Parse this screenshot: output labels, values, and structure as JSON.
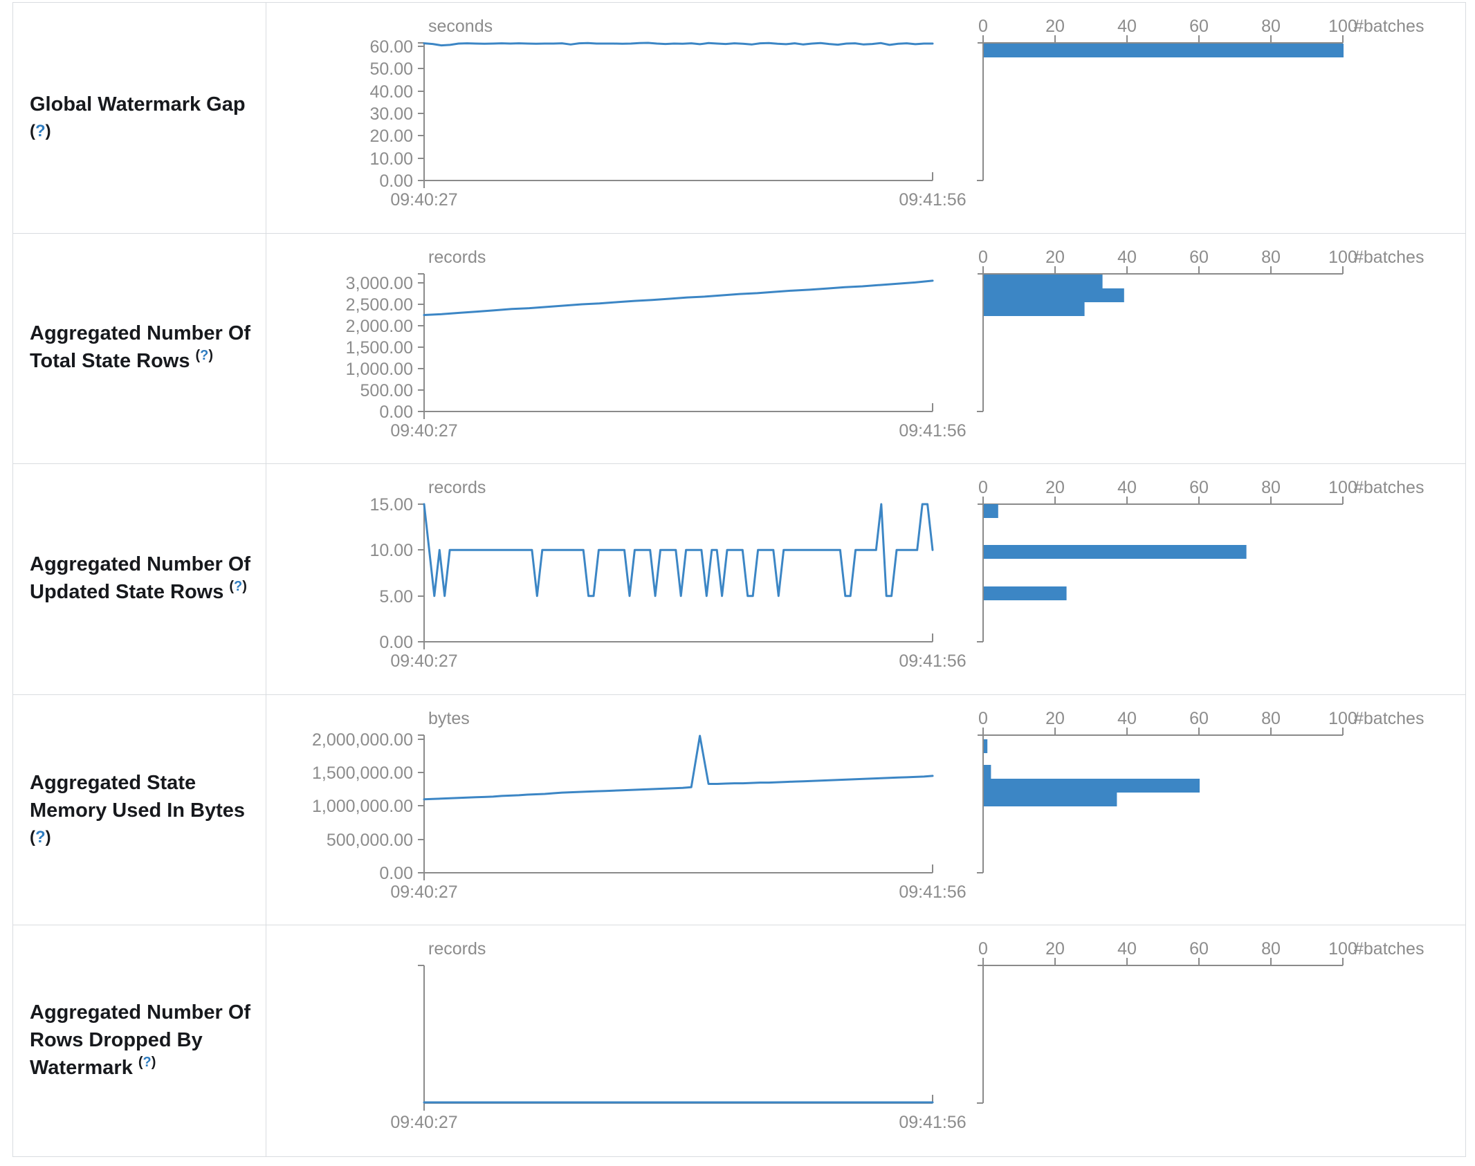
{
  "chart_data": [
    {
      "type": "line",
      "row_label": "Global Watermark Gap (?)",
      "label_lines": [
        "Global Watermark Gap"
      ],
      "help": {
        "open": "(",
        "q": "?",
        "close": ")"
      },
      "help_inline": false,
      "unit": "seconds",
      "x_start_label": "09:40:27",
      "x_end_label": "09:41:56",
      "y_max": 61.5,
      "y_ticks": [
        {
          "value": 0,
          "label": "0.00"
        },
        {
          "value": 10,
          "label": "10.00"
        },
        {
          "value": 20,
          "label": "20.00"
        },
        {
          "value": 30,
          "label": "30.00"
        },
        {
          "value": 40,
          "label": "40.00"
        },
        {
          "value": 50,
          "label": "50.00"
        },
        {
          "value": 60,
          "label": "60.00"
        }
      ],
      "series": [
        61.3,
        61.0,
        60.4,
        60.6,
        61.2,
        61.3,
        61.2,
        61.1,
        61.2,
        61.3,
        61.2,
        61.3,
        61.2,
        61.1,
        61.2,
        61.2,
        61.3,
        60.8,
        61.3,
        61.4,
        61.2,
        61.2,
        61.2,
        61.1,
        61.2,
        61.4,
        61.5,
        61.2,
        61.0,
        61.2,
        61.1,
        61.3,
        60.9,
        61.4,
        61.2,
        61.0,
        61.3,
        61.1,
        60.8,
        61.3,
        61.4,
        61.1,
        60.9,
        61.3,
        60.8,
        61.2,
        61.4,
        61.0,
        60.7,
        61.2,
        61.3,
        60.8,
        61.0,
        61.4,
        60.6,
        61.1,
        61.3,
        60.9,
        61.2,
        61.2
      ],
      "histogram": {
        "unit_label": "#batches",
        "tick_labels": [
          "0",
          "20",
          "40",
          "60",
          "80",
          "100"
        ],
        "tick_values": [
          0,
          20,
          40,
          60,
          80,
          100
        ],
        "max": 100,
        "bars": [
          {
            "count": 100,
            "bin_top_value": 61.3
          }
        ]
      }
    },
    {
      "type": "line",
      "row_label": "Aggregated Number Of Total State Rows (?)",
      "label_lines": [
        "Aggregated Number Of",
        "Total State Rows"
      ],
      "help": {
        "open": "(",
        "q": "?",
        "close": ")"
      },
      "help_inline": true,
      "unit": "records",
      "x_start_label": "09:40:27",
      "x_end_label": "09:41:56",
      "y_max": 3210,
      "y_ticks": [
        {
          "value": 0,
          "label": "0.00"
        },
        {
          "value": 500,
          "label": "500.00"
        },
        {
          "value": 1000,
          "label": "1,000.00"
        },
        {
          "value": 1500,
          "label": "1,500.00"
        },
        {
          "value": 2000,
          "label": "2,000.00"
        },
        {
          "value": 2500,
          "label": "2,500.00"
        },
        {
          "value": 3000,
          "label": "3,000.00"
        }
      ],
      "series": [
        2250,
        2270,
        2300,
        2330,
        2360,
        2390,
        2410,
        2440,
        2470,
        2500,
        2520,
        2550,
        2580,
        2600,
        2630,
        2660,
        2680,
        2710,
        2740,
        2760,
        2790,
        2820,
        2840,
        2870,
        2900,
        2920,
        2950,
        2980,
        3010,
        3050
      ],
      "histogram": {
        "unit_label": "#batches",
        "tick_labels": [
          "0",
          "20",
          "40",
          "60",
          "80",
          "100"
        ],
        "tick_values": [
          0,
          20,
          40,
          60,
          80,
          100
        ],
        "max": 100,
        "bars": [
          {
            "count": 33,
            "bin_top_value": 3194
          },
          {
            "count": 39,
            "bin_top_value": 2871
          },
          {
            "count": 28,
            "bin_top_value": 2549
          }
        ]
      }
    },
    {
      "type": "line",
      "row_label": "Aggregated Number Of Updated State Rows (?)",
      "label_lines": [
        "Aggregated Number Of",
        "Updated State Rows"
      ],
      "help": {
        "open": "(",
        "q": "?",
        "close": ")"
      },
      "help_inline": true,
      "unit": "records",
      "x_start_label": "09:40:27",
      "x_end_label": "09:41:56",
      "y_max": 15,
      "y_ticks": [
        {
          "value": 0,
          "label": "0.00"
        },
        {
          "value": 5,
          "label": "5.00"
        },
        {
          "value": 10,
          "label": "10.00"
        },
        {
          "value": 15,
          "label": "15.00"
        }
      ],
      "series": [
        15,
        10,
        5,
        10,
        5,
        10,
        10,
        10,
        10,
        10,
        10,
        10,
        10,
        10,
        10,
        10,
        10,
        10,
        10,
        10,
        10,
        10,
        5,
        10,
        10,
        10,
        10,
        10,
        10,
        10,
        10,
        10,
        5,
        5,
        10,
        10,
        10,
        10,
        10,
        10,
        5,
        10,
        10,
        10,
        10,
        5,
        10,
        10,
        10,
        10,
        5,
        10,
        10,
        10,
        10,
        5,
        10,
        10,
        5,
        10,
        10,
        10,
        10,
        5,
        5,
        10,
        10,
        10,
        10,
        5,
        10,
        10,
        10,
        10,
        10,
        10,
        10,
        10,
        10,
        10,
        10,
        10,
        5,
        5,
        10,
        10,
        10,
        10,
        10,
        15,
        5,
        5,
        10,
        10,
        10,
        10,
        10,
        15,
        15,
        10
      ],
      "histogram": {
        "unit_label": "#batches",
        "tick_labels": [
          "0",
          "20",
          "40",
          "60",
          "80",
          "100"
        ],
        "tick_values": [
          0,
          20,
          40,
          60,
          80,
          100
        ],
        "max": 100,
        "bars": [
          {
            "count": 4,
            "bin_top_value": 15
          },
          {
            "count": 73,
            "bin_top_value": 10.55
          },
          {
            "count": 23,
            "bin_top_value": 6.05
          }
        ]
      }
    },
    {
      "type": "line",
      "row_label": "Aggregated State Memory Used In Bytes (?)",
      "label_lines": [
        "Aggregated State",
        "Memory Used In Bytes"
      ],
      "help": {
        "open": "(",
        "q": "?",
        "close": ")"
      },
      "help_inline": false,
      "unit": "bytes",
      "x_start_label": "09:40:27",
      "x_end_label": "09:41:56",
      "y_max": 2060000,
      "y_ticks": [
        {
          "value": 0,
          "label": "0.00"
        },
        {
          "value": 500000,
          "label": "500,000.00"
        },
        {
          "value": 1000000,
          "label": "1,000,000.00"
        },
        {
          "value": 1500000,
          "label": "1,500,000.00"
        },
        {
          "value": 2000000,
          "label": "2,000,000.00"
        }
      ],
      "series": [
        1100000,
        1105000,
        1110000,
        1115000,
        1120000,
        1125000,
        1130000,
        1135000,
        1140000,
        1150000,
        1155000,
        1160000,
        1170000,
        1175000,
        1180000,
        1190000,
        1200000,
        1205000,
        1210000,
        1215000,
        1220000,
        1225000,
        1230000,
        1235000,
        1240000,
        1245000,
        1250000,
        1255000,
        1260000,
        1265000,
        1270000,
        1280000,
        2050000,
        1330000,
        1330000,
        1335000,
        1340000,
        1340000,
        1345000,
        1350000,
        1350000,
        1355000,
        1360000,
        1365000,
        1370000,
        1375000,
        1380000,
        1385000,
        1390000,
        1395000,
        1400000,
        1405000,
        1410000,
        1415000,
        1420000,
        1425000,
        1430000,
        1435000,
        1440000,
        1450000
      ],
      "histogram": {
        "unit_label": "#batches",
        "tick_labels": [
          "0",
          "20",
          "40",
          "60",
          "80",
          "100"
        ],
        "tick_values": [
          0,
          20,
          40,
          60,
          80,
          100
        ],
        "max": 100,
        "bars": [
          {
            "count": 1,
            "bin_top_value": 1998000
          },
          {
            "count": 2,
            "bin_top_value": 1615000
          },
          {
            "count": 60,
            "bin_top_value": 1408000
          },
          {
            "count": 37,
            "bin_top_value": 1201000
          }
        ]
      }
    },
    {
      "type": "line",
      "row_label": "Aggregated Number Of Rows Dropped By Watermark (?)",
      "label_lines": [
        "Aggregated Number Of",
        "Rows Dropped By",
        "Watermark"
      ],
      "help": {
        "open": "(",
        "q": "?",
        "close": ")"
      },
      "help_inline": true,
      "unit": "records",
      "x_start_label": "09:40:27",
      "x_end_label": "09:41:56",
      "y_max": 1,
      "y_ticks": [],
      "series": [
        0,
        0
      ],
      "histogram": {
        "unit_label": "#batches",
        "tick_labels": [
          "0",
          "20",
          "40",
          "60",
          "80",
          "100"
        ],
        "tick_values": [
          0,
          20,
          40,
          60,
          80,
          100
        ],
        "max": 100,
        "bars": []
      }
    }
  ],
  "colors": {
    "accent_blue": "#3c86c5",
    "axis_gray": "#8a8a8a",
    "chart_text_gray": "#8c8c8c",
    "label_dark": "#17191d",
    "help_blue": "#2e7cc0",
    "border_gray": "#d9dce0"
  }
}
